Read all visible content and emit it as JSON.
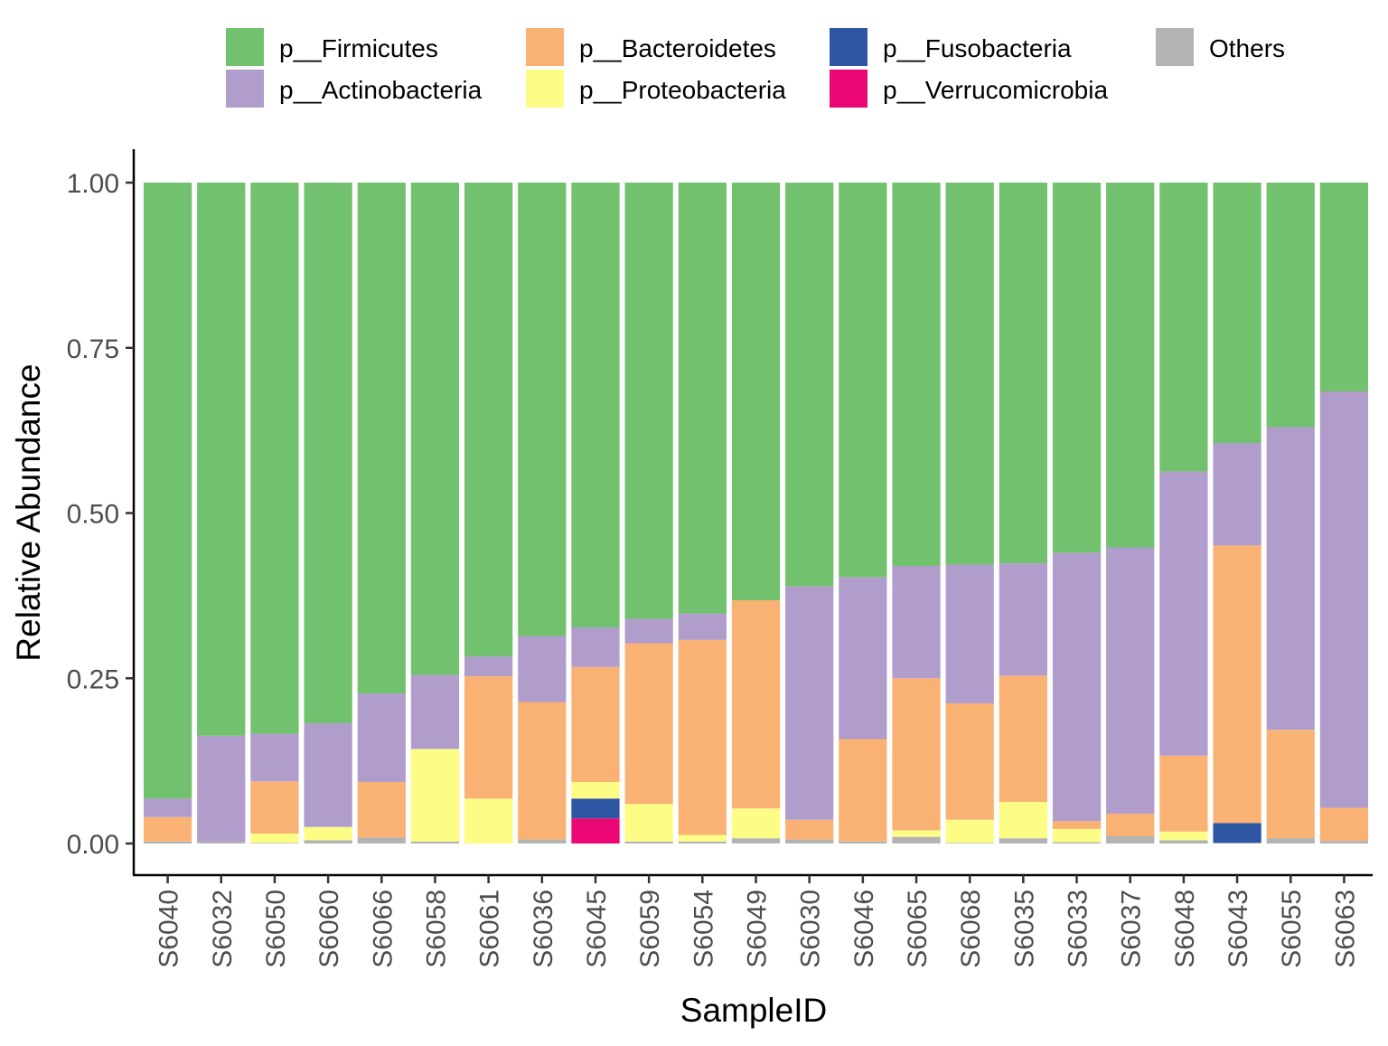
{
  "chart_data": {
    "type": "bar",
    "stacked": true,
    "title": "",
    "xlabel": "SampleID",
    "ylabel": "Relative Abundance",
    "ylim": [
      0,
      1
    ],
    "yticks": [
      "0.00",
      "0.25",
      "0.50",
      "0.75",
      "1.00"
    ],
    "ytick_values": [
      0,
      0.25,
      0.5,
      0.75,
      1.0
    ],
    "grid": false,
    "legend_position": "top",
    "categories": [
      "S6040",
      "S6032",
      "S6050",
      "S6060",
      "S6066",
      "S6058",
      "S6061",
      "S6036",
      "S6045",
      "S6059",
      "S6054",
      "S6049",
      "S6030",
      "S6046",
      "S6065",
      "S6068",
      "S6035",
      "S6033",
      "S6037",
      "S6048",
      "S6043",
      "S6055",
      "S6063"
    ],
    "stack_order": [
      "Others",
      "p__Verrucomicrobia",
      "p__Fusobacteria",
      "p__Proteobacteria",
      "p__Bacteroidetes",
      "p__Actinobacteria",
      "p__Firmicutes"
    ],
    "legend_order": [
      "p__Firmicutes",
      "p__Actinobacteria",
      "p__Bacteroidetes",
      "p__Proteobacteria",
      "p__Fusobacteria",
      "p__Verrucomicrobia",
      "Others"
    ],
    "series": [
      {
        "name": "p__Firmicutes",
        "color": "#71C16E",
        "values": [
          0.932,
          0.837,
          0.834,
          0.818,
          0.773,
          0.745,
          0.717,
          0.686,
          0.673,
          0.66,
          0.652,
          0.632,
          0.611,
          0.597,
          0.58,
          0.578,
          0.576,
          0.56,
          0.552,
          0.437,
          0.394,
          0.37,
          0.316
        ]
      },
      {
        "name": "p__Actinobacteria",
        "color": "#B09DCC",
        "values": [
          0.028,
          0.16,
          0.072,
          0.157,
          0.134,
          0.112,
          0.03,
          0.1,
          0.06,
          0.037,
          0.04,
          0.0,
          0.353,
          0.245,
          0.17,
          0.21,
          0.17,
          0.406,
          0.403,
          0.43,
          0.155,
          0.458,
          0.63
        ]
      },
      {
        "name": "p__Bacteroidetes",
        "color": "#F9B274",
        "values": [
          0.037,
          0.0,
          0.079,
          0.0,
          0.084,
          0.0,
          0.185,
          0.208,
          0.174,
          0.243,
          0.295,
          0.315,
          0.03,
          0.155,
          0.23,
          0.176,
          0.191,
          0.012,
          0.034,
          0.115,
          0.42,
          0.164,
          0.05
        ]
      },
      {
        "name": "p__Proteobacteria",
        "color": "#FDFD86",
        "values": [
          0.0,
          0.0,
          0.014,
          0.02,
          0.0,
          0.14,
          0.068,
          0.0,
          0.025,
          0.057,
          0.01,
          0.045,
          0.0,
          0.0,
          0.01,
          0.035,
          0.055,
          0.02,
          0.0,
          0.013,
          0.0,
          0.0,
          0.0
        ]
      },
      {
        "name": "p__Fusobacteria",
        "color": "#2F56A3",
        "values": [
          0.0,
          0.0,
          0.0,
          0.0,
          0.0,
          0.0,
          0.0,
          0.0,
          0.03,
          0.0,
          0.0,
          0.0,
          0.0,
          0.0,
          0.0,
          0.0,
          0.0,
          0.0,
          0.0,
          0.0,
          0.03,
          0.0,
          0.0
        ]
      },
      {
        "name": "p__Verrucomicrobia",
        "color": "#EA0773",
        "values": [
          0.0,
          0.0,
          0.0,
          0.0,
          0.0,
          0.0,
          0.0,
          0.0,
          0.038,
          0.0,
          0.0,
          0.0,
          0.0,
          0.0,
          0.0,
          0.0,
          0.0,
          0.0,
          0.0,
          0.0,
          0.0,
          0.0,
          0.0
        ]
      },
      {
        "name": "Others",
        "color": "#B3B3B3",
        "values": [
          0.003,
          0.003,
          0.001,
          0.005,
          0.009,
          0.003,
          0.0,
          0.006,
          0.0,
          0.003,
          0.003,
          0.008,
          0.006,
          0.003,
          0.01,
          0.001,
          0.008,
          0.002,
          0.011,
          0.005,
          0.001,
          0.008,
          0.004
        ]
      }
    ]
  }
}
